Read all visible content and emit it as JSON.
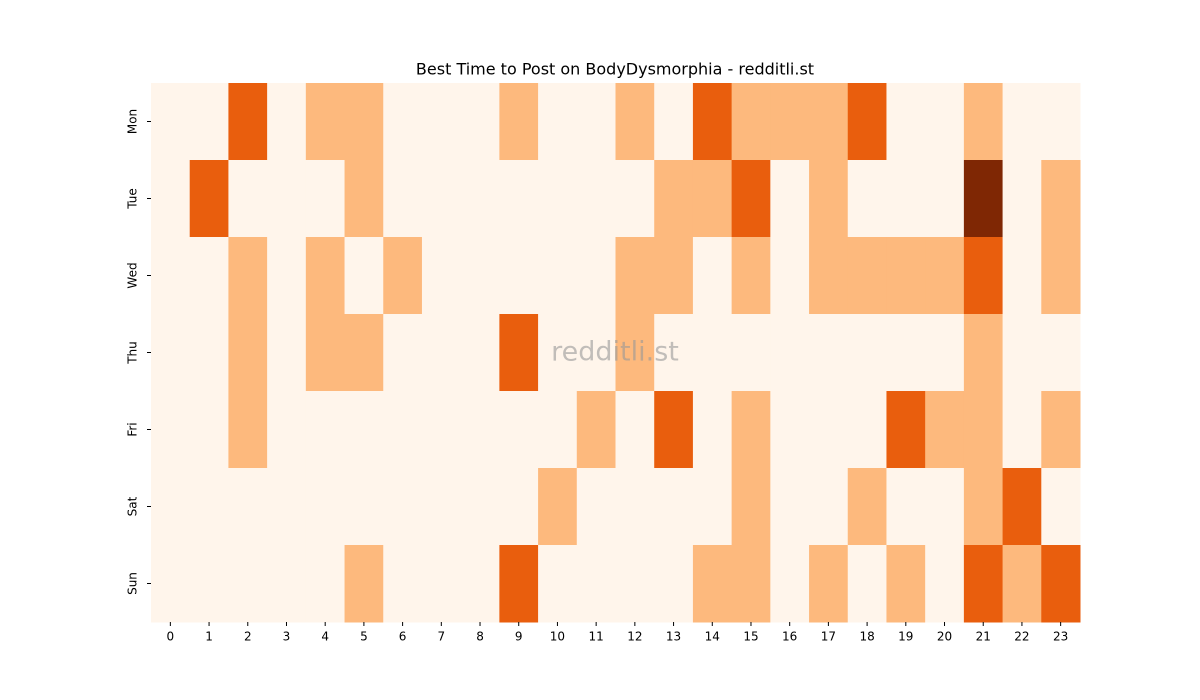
{
  "chart_data": {
    "type": "heatmap",
    "title": "Best Time to Post on BodyDysmorphia - redditli.st",
    "watermark": "redditli.st",
    "categories": [
      "0",
      "1",
      "2",
      "3",
      "4",
      "5",
      "6",
      "7",
      "8",
      "9",
      "10",
      "11",
      "12",
      "13",
      "14",
      "15",
      "16",
      "17",
      "18",
      "19",
      "20",
      "21",
      "22",
      "23"
    ],
    "y_categories": [
      "Mon",
      "Tue",
      "Wed",
      "Thu",
      "Fri",
      "Sat",
      "Sun"
    ],
    "values": [
      [
        0,
        0,
        2,
        0,
        1,
        1,
        0,
        0,
        0,
        1,
        0,
        0,
        1,
        0,
        2,
        1,
        1,
        1,
        2,
        0,
        0,
        1,
        0,
        0
      ],
      [
        0,
        2,
        0,
        0,
        0,
        1,
        0,
        0,
        0,
        0,
        0,
        0,
        0,
        1,
        1,
        2,
        0,
        1,
        0,
        0,
        0,
        3,
        0,
        1
      ],
      [
        0,
        0,
        1,
        0,
        1,
        0,
        1,
        0,
        0,
        0,
        0,
        0,
        1,
        1,
        0,
        1,
        0,
        1,
        1,
        1,
        1,
        2,
        0,
        1
      ],
      [
        0,
        0,
        1,
        0,
        1,
        1,
        0,
        0,
        0,
        2,
        0,
        0,
        1,
        0,
        0,
        0,
        0,
        0,
        0,
        0,
        0,
        1,
        0,
        0
      ],
      [
        0,
        0,
        1,
        0,
        0,
        0,
        0,
        0,
        0,
        0,
        0,
        1,
        0,
        2,
        0,
        1,
        0,
        0,
        0,
        2,
        1,
        1,
        0,
        1
      ],
      [
        0,
        0,
        0,
        0,
        0,
        0,
        0,
        0,
        0,
        0,
        1,
        0,
        0,
        0,
        0,
        1,
        0,
        0,
        1,
        0,
        0,
        1,
        2,
        0
      ],
      [
        0,
        0,
        0,
        0,
        0,
        1,
        0,
        0,
        0,
        2,
        0,
        0,
        0,
        0,
        1,
        1,
        0,
        1,
        0,
        1,
        0,
        2,
        1,
        2
      ]
    ],
    "vlim": [
      0,
      3
    ],
    "colors": [
      "#fff5eb",
      "#fdb97d",
      "#e95e0d",
      "#7f2704"
    ]
  }
}
